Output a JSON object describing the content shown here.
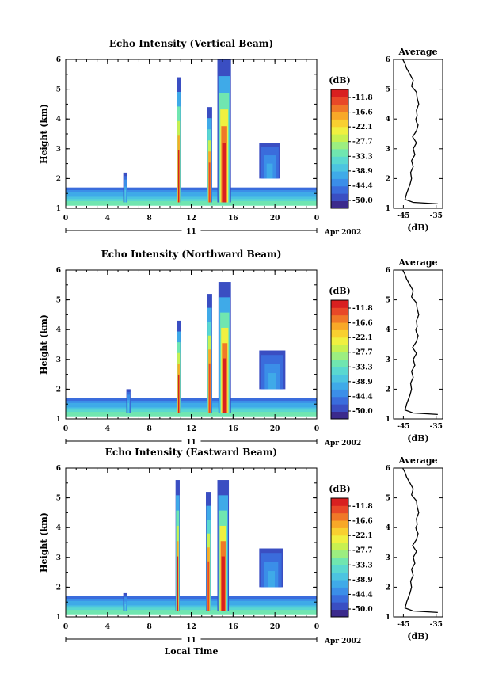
{
  "page": {
    "xlabel": "Local Time",
    "date_label": "Apr 2002",
    "day_label": "11"
  },
  "colorbar": {
    "unit_label": "(dB)",
    "ticks": [
      "-11.8",
      "-16.6",
      "-22.1",
      "-27.7",
      "-33.3",
      "-38.9",
      "-44.4",
      "-50.0"
    ],
    "colors": [
      "#3b2a8c",
      "#3a4ec2",
      "#3a6cdc",
      "#3b8ee8",
      "#3faae8",
      "#4cc4e0",
      "#5ad8d0",
      "#70e6b0",
      "#9cee80",
      "#c8f050",
      "#f0f040",
      "#f8d030",
      "#f8a828",
      "#f07828",
      "#e84828",
      "#d82020"
    ]
  },
  "panels": [
    {
      "id": "vertical",
      "title": "Echo Intensity (Vertical Beam)",
      "ylabel": "Height (km)",
      "x_ticks": [
        "0",
        "4",
        "8",
        "12",
        "16",
        "20",
        "0"
      ],
      "y_ticks": [
        "1",
        "2",
        "3",
        "4",
        "5",
        "6"
      ],
      "profile_title": "Average",
      "profile_xlabel": "(dB)",
      "profile_x_ticks": [
        "-45",
        "-35"
      ],
      "profile_y_ticks": [
        "1",
        "2",
        "3",
        "4",
        "5",
        "6"
      ]
    },
    {
      "id": "northward",
      "title": "Echo Intensity (Northward Beam)",
      "ylabel": "Height (km)",
      "x_ticks": [
        "0",
        "4",
        "8",
        "12",
        "16",
        "20",
        "0"
      ],
      "y_ticks": [
        "1",
        "2",
        "3",
        "4",
        "5",
        "6"
      ],
      "profile_title": "Average",
      "profile_xlabel": "(dB)",
      "profile_x_ticks": [
        "-45",
        "-35"
      ],
      "profile_y_ticks": [
        "1",
        "2",
        "3",
        "4",
        "5",
        "6"
      ]
    },
    {
      "id": "eastward",
      "title": "Echo Intensity (Eastward Beam)",
      "ylabel": "Height (km)",
      "x_ticks": [
        "0",
        "4",
        "8",
        "12",
        "16",
        "20",
        "0"
      ],
      "y_ticks": [
        "1",
        "2",
        "3",
        "4",
        "5",
        "6"
      ],
      "profile_title": "Average",
      "profile_xlabel": "(dB)",
      "profile_x_ticks": [
        "-45",
        "-35"
      ],
      "profile_y_ticks": [
        "1",
        "2",
        "3",
        "4",
        "5",
        "6"
      ]
    }
  ],
  "chart_data": [
    {
      "type": "heatmap",
      "title": "Echo Intensity (Vertical Beam)",
      "ylabel": "Height (km)",
      "xlim": [
        0,
        24
      ],
      "ylim": [
        1,
        6
      ],
      "x_unit": "hours (local time), Apr 11 2002",
      "value_unit": "dB",
      "value_range": [
        -50.0,
        -11.8
      ],
      "background_layer": {
        "x_range": [
          0,
          24
        ],
        "height_range": [
          1.1,
          1.7
        ],
        "top_dB": -45,
        "bottom_dB": -30
      },
      "cells": [
        {
          "x_range": [
            10.6,
            11.0
          ],
          "height_range": [
            1.2,
            5.4
          ],
          "peak_dB": -14
        },
        {
          "x_range": [
            13.5,
            14.0
          ],
          "height_range": [
            1.2,
            4.4
          ],
          "peak_dB": -15
        },
        {
          "x_range": [
            14.5,
            15.8
          ],
          "height_range": [
            1.2,
            6.0
          ],
          "peak_dB": -12
        },
        {
          "x_range": [
            5.5,
            5.9
          ],
          "height_range": [
            1.2,
            2.2
          ],
          "peak_dB": -38
        },
        {
          "x_range": [
            18.5,
            20.5
          ],
          "height_range": [
            2.0,
            3.2
          ],
          "peak_dB": -40
        }
      ]
    },
    {
      "type": "line",
      "title": "Average",
      "xlabel": "(dB)",
      "xlim": [
        -48,
        -33
      ],
      "ylim": [
        1,
        6
      ],
      "x": [
        -34.5,
        -42,
        -44.5,
        -44,
        -43,
        -42.5,
        -42.8,
        -42,
        -42.5,
        -41.5,
        -42,
        -41,
        -42.2,
        -41,
        -40.5,
        -41,
        -41.2,
        -40.8,
        -41,
        -40.3,
        -40.8,
        -41,
        -42.5,
        -42,
        -43,
        -44,
        -44.5,
        -45.2
      ],
      "y": [
        1.15,
        1.2,
        1.3,
        1.5,
        1.8,
        2.0,
        2.2,
        2.4,
        2.6,
        2.8,
        3.0,
        3.2,
        3.4,
        3.6,
        3.8,
        3.9,
        4.0,
        4.1,
        4.3,
        4.5,
        4.7,
        4.9,
        5.1,
        5.3,
        5.5,
        5.7,
        5.85,
        6.0
      ]
    },
    {
      "type": "heatmap",
      "title": "Echo Intensity (Northward Beam)",
      "ylabel": "Height (km)",
      "xlim": [
        0,
        24
      ],
      "ylim": [
        1,
        6
      ],
      "x_unit": "hours (local time), Apr 11 2002",
      "value_unit": "dB",
      "value_range": [
        -50.0,
        -11.8
      ],
      "background_layer": {
        "x_range": [
          0,
          24
        ],
        "height_range": [
          1.1,
          1.7
        ],
        "top_dB": -45,
        "bottom_dB": -30
      },
      "cells": [
        {
          "x_range": [
            10.6,
            11.0
          ],
          "height_range": [
            1.2,
            4.3
          ],
          "peak_dB": -14
        },
        {
          "x_range": [
            13.5,
            14.0
          ],
          "height_range": [
            1.2,
            5.2
          ],
          "peak_dB": -15
        },
        {
          "x_range": [
            14.6,
            15.8
          ],
          "height_range": [
            1.2,
            5.6
          ],
          "peak_dB": -12
        },
        {
          "x_range": [
            5.8,
            6.2
          ],
          "height_range": [
            1.2,
            2.0
          ],
          "peak_dB": -38
        },
        {
          "x_range": [
            18.5,
            21.0
          ],
          "height_range": [
            2.0,
            3.3
          ],
          "peak_dB": -40
        }
      ]
    },
    {
      "type": "line",
      "title": "Average",
      "xlabel": "(dB)",
      "xlim": [
        -48,
        -33
      ],
      "ylim": [
        1,
        6
      ],
      "x": [
        -34.5,
        -42,
        -44.5,
        -44,
        -43,
        -42.5,
        -42.8,
        -42,
        -42.5,
        -41.5,
        -42,
        -41,
        -42.2,
        -41,
        -40.5,
        -41,
        -41.2,
        -40.8,
        -41,
        -40.3,
        -40.8,
        -41,
        -42.5,
        -42,
        -43,
        -44,
        -44.5,
        -45.2
      ],
      "y": [
        1.15,
        1.2,
        1.3,
        1.5,
        1.8,
        2.0,
        2.2,
        2.4,
        2.6,
        2.8,
        3.0,
        3.2,
        3.4,
        3.6,
        3.8,
        3.9,
        4.0,
        4.1,
        4.3,
        4.5,
        4.7,
        4.9,
        5.1,
        5.3,
        5.5,
        5.7,
        5.85,
        6.0
      ]
    },
    {
      "type": "heatmap",
      "title": "Echo Intensity (Eastward Beam)",
      "ylabel": "Height (km)",
      "xlim": [
        0,
        24
      ],
      "ylim": [
        1,
        6
      ],
      "x_unit": "hours (local time), Apr 11 2002",
      "value_unit": "dB",
      "value_range": [
        -50.0,
        -11.8
      ],
      "background_layer": {
        "x_range": [
          0,
          24
        ],
        "height_range": [
          1.1,
          1.7
        ],
        "top_dB": -45,
        "bottom_dB": -30
      },
      "cells": [
        {
          "x_range": [
            10.5,
            10.9
          ],
          "height_range": [
            1.2,
            5.6
          ],
          "peak_dB": -14
        },
        {
          "x_range": [
            13.4,
            13.9
          ],
          "height_range": [
            1.2,
            5.2
          ],
          "peak_dB": -15
        },
        {
          "x_range": [
            14.5,
            15.6
          ],
          "height_range": [
            1.2,
            5.6
          ],
          "peak_dB": -12
        },
        {
          "x_range": [
            5.5,
            5.9
          ],
          "height_range": [
            1.2,
            1.8
          ],
          "peak_dB": -38
        },
        {
          "x_range": [
            18.5,
            20.8
          ],
          "height_range": [
            2.0,
            3.3
          ],
          "peak_dB": -40
        }
      ]
    },
    {
      "type": "line",
      "title": "Average",
      "xlabel": "(dB)",
      "xlim": [
        -48,
        -33
      ],
      "ylim": [
        1,
        6
      ],
      "x": [
        -34.5,
        -42,
        -44.5,
        -44,
        -43,
        -42.5,
        -42.8,
        -42,
        -42.5,
        -41.5,
        -42,
        -41,
        -42.2,
        -41,
        -40.5,
        -41,
        -41.2,
        -40.8,
        -41,
        -40.3,
        -40.8,
        -41,
        -42.5,
        -42,
        -43,
        -44,
        -44.5,
        -45.2
      ],
      "y": [
        1.15,
        1.2,
        1.3,
        1.5,
        1.8,
        2.0,
        2.2,
        2.4,
        2.6,
        2.8,
        3.0,
        3.2,
        3.4,
        3.6,
        3.8,
        3.9,
        4.0,
        4.1,
        4.3,
        4.5,
        4.7,
        4.9,
        5.1,
        5.3,
        5.5,
        5.7,
        5.85,
        6.0
      ]
    }
  ]
}
